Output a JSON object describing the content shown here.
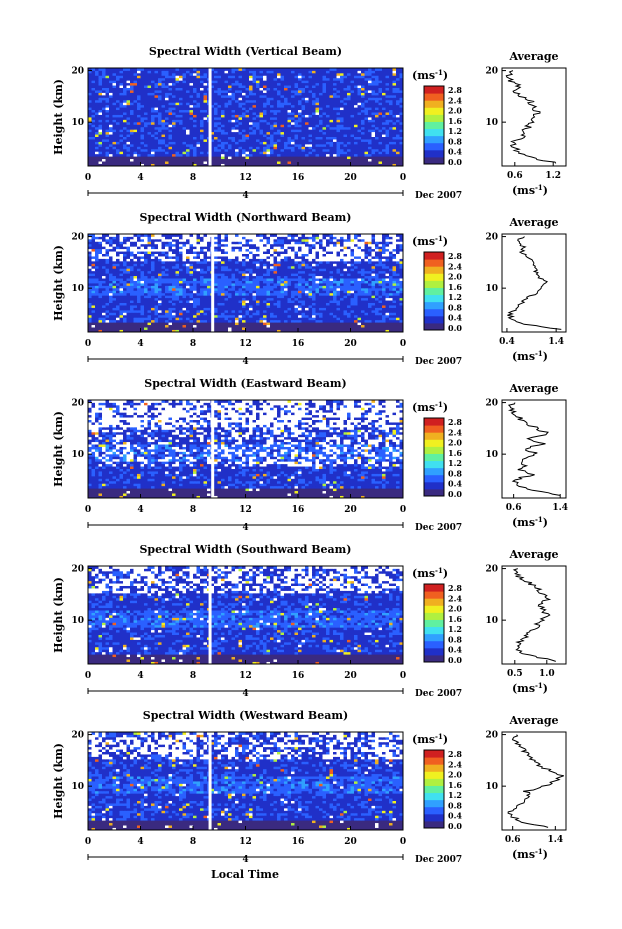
{
  "figure": {
    "xlabel": "Local Time",
    "ylabel": "Height (km)",
    "date_label": "Dec 2007",
    "date_tick": "4",
    "colorbar_unit": "(ms",
    "colorbar_unit_exp": "-1",
    "colorbar_unit_close": ")",
    "average_title": "Average",
    "average_xlabel": "(ms",
    "average_xlabel_exp": "-1",
    "average_xlabel_close": ")"
  },
  "colorbar": {
    "ticks": [
      "2.8",
      "2.4",
      "2.0",
      "1.6",
      "1.2",
      "0.8",
      "0.4",
      "0.0"
    ],
    "range": [
      0,
      3.0
    ],
    "colors": [
      "#3a2a80",
      "#2030c8",
      "#2a60ff",
      "#30a0ff",
      "#40e0f0",
      "#60f0a0",
      "#b0f040",
      "#f0f020",
      "#f0b020",
      "#f06020",
      "#d02020"
    ]
  },
  "chart_data": [
    {
      "type": "heatmap",
      "title": "Spectral Width (Vertical Beam)",
      "xlabel": "Local Time",
      "ylabel": "Height (km)",
      "x_ticks": [
        "0",
        "4",
        "8",
        "12",
        "16",
        "20",
        "0"
      ],
      "y_ticks": [
        "20",
        "10"
      ],
      "xlim": [
        0,
        24
      ],
      "ylim": [
        1.5,
        20.5
      ],
      "value_range": [
        0,
        2.8
      ],
      "gap_hour": 9.3,
      "average": {
        "xlabel": "(ms-1)",
        "x_ticks": [
          "0.6",
          "1.2"
        ],
        "xlim": [
          0.4,
          1.4
        ],
        "heights": [
          2,
          3,
          4,
          5,
          6,
          7,
          8,
          9,
          10,
          11,
          12,
          13,
          14,
          15,
          16,
          17,
          18,
          19,
          20
        ],
        "values": [
          1.3,
          0.9,
          0.65,
          0.6,
          0.55,
          0.7,
          0.75,
          0.8,
          0.85,
          0.9,
          0.95,
          0.9,
          0.85,
          0.7,
          0.6,
          0.65,
          0.55,
          0.5,
          0.6
        ]
      }
    },
    {
      "type": "heatmap",
      "title": "Spectral Width (Northward Beam)",
      "xlabel": "Local Time",
      "ylabel": "Height (km)",
      "x_ticks": [
        "0",
        "4",
        "8",
        "12",
        "16",
        "20",
        "0"
      ],
      "y_ticks": [
        "20",
        "10"
      ],
      "xlim": [
        0,
        24
      ],
      "ylim": [
        1.5,
        20.5
      ],
      "value_range": [
        0,
        2.8
      ],
      "gap_hour": 9.5,
      "average": {
        "xlabel": "(ms-1)",
        "x_ticks": [
          "0.4",
          "1.4"
        ],
        "xlim": [
          0.3,
          1.6
        ],
        "heights": [
          2,
          3,
          4,
          5,
          6,
          7,
          8,
          9,
          10,
          11,
          12,
          13,
          14,
          15,
          16,
          17,
          18,
          19,
          20
        ],
        "values": [
          1.5,
          0.8,
          0.5,
          0.45,
          0.6,
          0.7,
          0.8,
          1.0,
          1.1,
          1.2,
          1.05,
          1.0,
          0.95,
          0.9,
          0.85,
          0.7,
          0.75,
          0.65,
          0.7
        ]
      }
    },
    {
      "type": "heatmap",
      "title": "Spectral Width (Eastward Beam)",
      "xlabel": "Local Time",
      "ylabel": "Height (km)",
      "x_ticks": [
        "0",
        "4",
        "8",
        "12",
        "16",
        "20",
        "0"
      ],
      "y_ticks": [
        "20",
        "10"
      ],
      "xlim": [
        0,
        24
      ],
      "ylim": [
        1.5,
        20.5
      ],
      "value_range": [
        0,
        2.8
      ],
      "gap_hour": 9.5,
      "average": {
        "xlabel": "(ms-1)",
        "x_ticks": [
          "0.6",
          "1.4"
        ],
        "xlim": [
          0.4,
          1.5
        ],
        "heights": [
          2,
          3,
          4,
          5,
          6,
          7,
          8,
          9,
          10,
          11,
          12,
          13,
          14,
          15,
          16,
          17,
          18,
          19,
          20
        ],
        "values": [
          1.4,
          0.9,
          0.7,
          0.6,
          0.9,
          0.7,
          0.8,
          0.7,
          1.0,
          0.8,
          1.1,
          0.9,
          1.2,
          1.0,
          0.8,
          0.7,
          0.6,
          0.55,
          0.6
        ]
      }
    },
    {
      "type": "heatmap",
      "title": "Spectral Width (Southward Beam)",
      "xlabel": "Local Time",
      "ylabel": "Height (km)",
      "x_ticks": [
        "0",
        "4",
        "8",
        "12",
        "16",
        "20",
        "0"
      ],
      "y_ticks": [
        "20",
        "10"
      ],
      "xlim": [
        0,
        24
      ],
      "ylim": [
        1.5,
        20.5
      ],
      "value_range": [
        0,
        2.8
      ],
      "gap_hour": 9.3,
      "average": {
        "xlabel": "(ms-1)",
        "x_ticks": [
          "0.5",
          "1.0"
        ],
        "xlim": [
          0.3,
          1.3
        ],
        "heights": [
          2,
          3,
          4,
          5,
          6,
          7,
          8,
          9,
          10,
          11,
          12,
          13,
          14,
          15,
          16,
          17,
          18,
          19,
          20
        ],
        "values": [
          1.2,
          0.8,
          0.55,
          0.5,
          0.6,
          0.7,
          0.75,
          0.85,
          0.95,
          1.0,
          0.95,
          0.9,
          1.0,
          0.95,
          0.85,
          0.75,
          0.6,
          0.5,
          0.55
        ]
      }
    },
    {
      "type": "heatmap",
      "title": "Spectral Width (Westward Beam)",
      "xlabel": "Local Time",
      "ylabel": "Height (km)",
      "x_ticks": [
        "0",
        "4",
        "8",
        "12",
        "16",
        "20",
        "0"
      ],
      "y_ticks": [
        "20",
        "10"
      ],
      "xlim": [
        0,
        24
      ],
      "ylim": [
        1.5,
        20.5
      ],
      "value_range": [
        0,
        2.8
      ],
      "gap_hour": 9.3,
      "average": {
        "xlabel": "(ms-1)",
        "x_ticks": [
          "0.6",
          "1.4"
        ],
        "xlim": [
          0.4,
          1.6
        ],
        "heights": [
          2,
          3,
          4,
          5,
          6,
          7,
          8,
          9,
          10,
          11,
          12,
          13,
          14,
          15,
          16,
          17,
          18,
          19,
          20
        ],
        "values": [
          1.3,
          0.8,
          0.6,
          0.55,
          0.7,
          0.8,
          0.9,
          0.85,
          1.2,
          1.4,
          1.5,
          1.3,
          1.1,
          1.0,
          0.9,
          0.8,
          0.7,
          0.65,
          0.7
        ]
      }
    }
  ]
}
